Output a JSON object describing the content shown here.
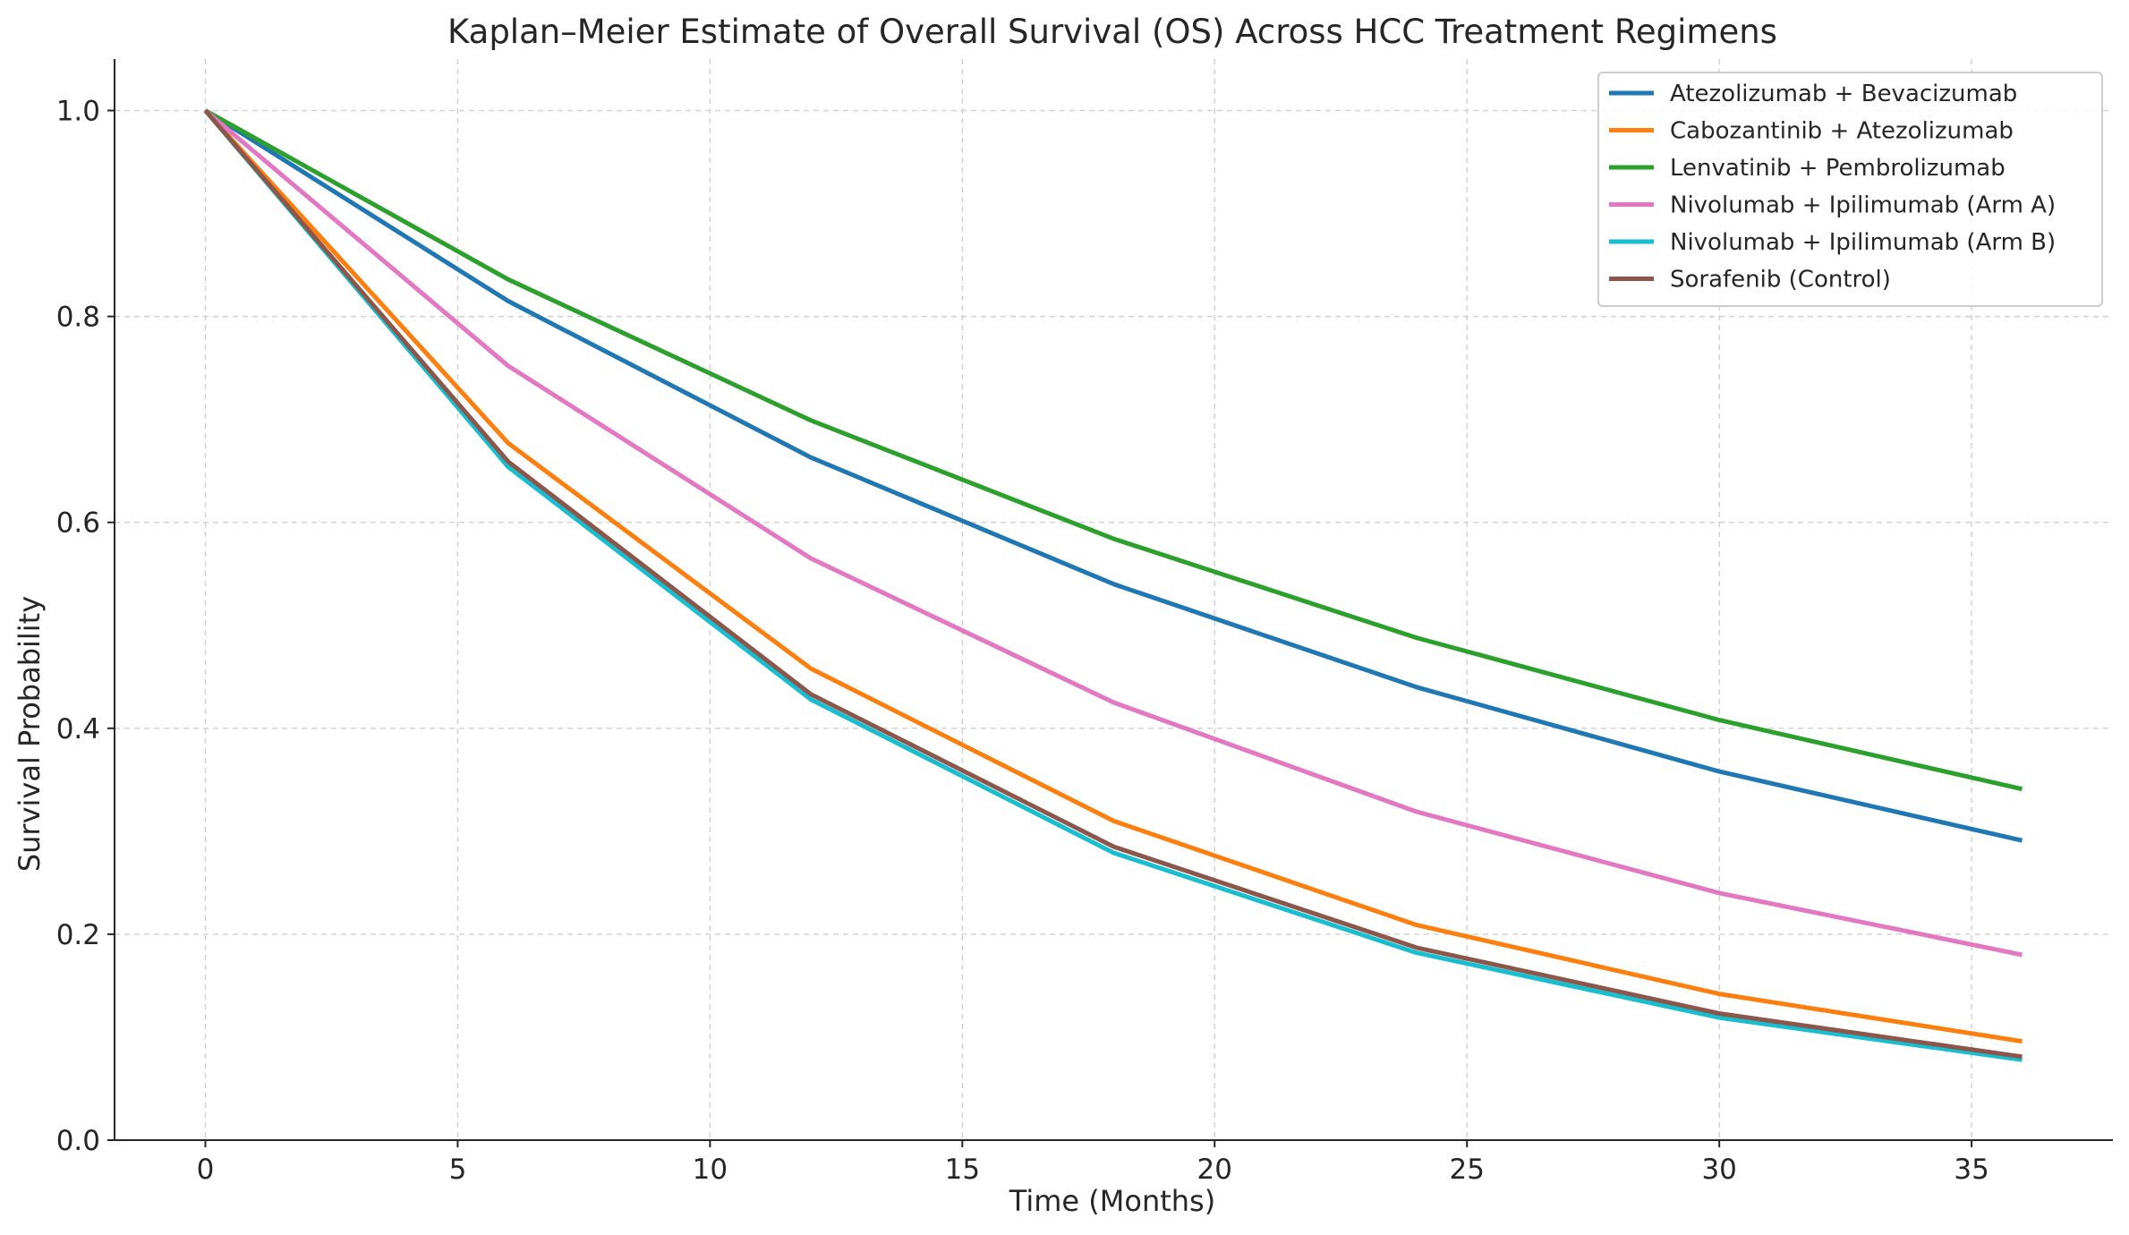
{
  "chart_data": {
    "type": "line",
    "title": "Kaplan–Meier Estimate of Overall Survival (OS) Across HCC Treatment Regimens",
    "xlabel": "Time (Months)",
    "ylabel": "Survival Probability",
    "xlim": [
      -1.8,
      37.8
    ],
    "ylim": [
      0,
      1.05
    ],
    "xticks": [
      0,
      5,
      10,
      15,
      20,
      25,
      30,
      35
    ],
    "yticks": [
      0.0,
      0.2,
      0.4,
      0.6,
      0.8,
      1.0
    ],
    "xtick_labels": [
      "0",
      "5",
      "10",
      "15",
      "20",
      "25",
      "30",
      "35"
    ],
    "ytick_labels": [
      "0.0",
      "0.2",
      "0.4",
      "0.6",
      "0.8",
      "1.0"
    ],
    "grid": true,
    "legend_position": "top-right",
    "x": [
      0,
      6,
      12,
      18,
      24,
      30,
      36
    ],
    "series": [
      {
        "name": "Atezolizumab + Bevacizumab",
        "color": "#1f77b4",
        "values": [
          1.0,
          0.815,
          0.663,
          0.54,
          0.44,
          0.358,
          0.291
        ]
      },
      {
        "name": "Cabozantinib + Atezolizumab",
        "color": "#ff7f0e",
        "values": [
          1.0,
          0.677,
          0.458,
          0.31,
          0.209,
          0.142,
          0.096
        ]
      },
      {
        "name": "Lenvatinib + Pembrolizumab",
        "color": "#2ca02c",
        "values": [
          1.0,
          0.836,
          0.699,
          0.584,
          0.488,
          0.408,
          0.341
        ]
      },
      {
        "name": "Nivolumab + Ipilimumab (Arm A)",
        "color": "#e377c2",
        "values": [
          1.0,
          0.752,
          0.565,
          0.425,
          0.319,
          0.24,
          0.18
        ]
      },
      {
        "name": "Nivolumab + Ipilimumab (Arm B)",
        "color": "#17becf",
        "values": [
          1.0,
          0.654,
          0.428,
          0.279,
          0.182,
          0.119,
          0.078
        ]
      },
      {
        "name": "Sorafenib (Control)",
        "color": "#8c564b",
        "values": [
          1.0,
          0.659,
          0.433,
          0.285,
          0.187,
          0.123,
          0.081
        ]
      }
    ]
  }
}
